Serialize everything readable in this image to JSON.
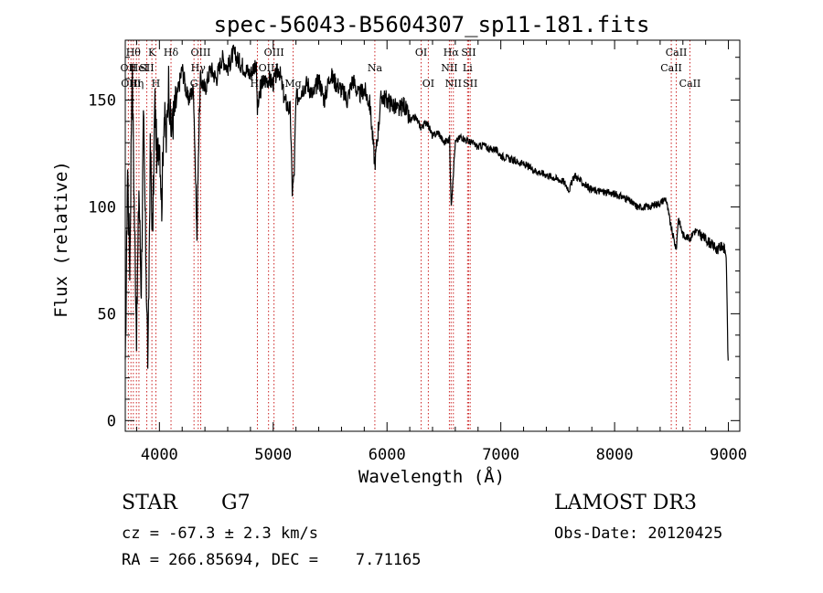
{
  "chart_data": {
    "type": "line",
    "title": "spec-56043-B5604307_sp11-181.fits",
    "xlabel": "Wavelength (Å)",
    "ylabel": "Flux (relative)",
    "xlim": [
      3700,
      9100
    ],
    "ylim": [
      -5,
      178
    ],
    "xticks": [
      4000,
      5000,
      6000,
      7000,
      8000,
      9000
    ],
    "xtick_labels": [
      "4000",
      "5000",
      "6000",
      "7000",
      "8000",
      "9000"
    ],
    "yticks": [
      0,
      50,
      100,
      150
    ],
    "ytick_labels": [
      "0",
      "50",
      "100",
      "150"
    ],
    "series": [
      {
        "name": "flux",
        "x": [
          3700,
          3720,
          3740,
          3760,
          3780,
          3800,
          3820,
          3840,
          3860,
          3880,
          3900,
          3920,
          3940,
          3960,
          3980,
          4000,
          4020,
          4040,
          4060,
          4080,
          4100,
          4150,
          4200,
          4250,
          4300,
          4330,
          4340,
          4360,
          4400,
          4450,
          4500,
          4550,
          4600,
          4650,
          4700,
          4750,
          4800,
          4850,
          4861,
          4900,
          4950,
          5000,
          5050,
          5100,
          5150,
          5167,
          5184,
          5200,
          5250,
          5300,
          5350,
          5400,
          5450,
          5500,
          5550,
          5600,
          5650,
          5700,
          5750,
          5800,
          5850,
          5893,
          5950,
          6000,
          6050,
          6100,
          6150,
          6200,
          6250,
          6300,
          6350,
          6400,
          6450,
          6500,
          6550,
          6563,
          6600,
          6650,
          6700,
          6750,
          6800,
          6850,
          6900,
          6950,
          7000,
          7100,
          7200,
          7300,
          7400,
          7500,
          7550,
          7600,
          7650,
          7700,
          7800,
          7900,
          8000,
          8100,
          8200,
          8300,
          8400,
          8450,
          8498,
          8542,
          8560,
          8600,
          8662,
          8700,
          8800,
          8900,
          8950,
          8980,
          9000
        ],
        "values": [
          20,
          120,
          70,
          170,
          95,
          40,
          110,
          60,
          140,
          80,
          25,
          130,
          85,
          150,
          120,
          135,
          100,
          145,
          130,
          160,
          135,
          150,
          165,
          150,
          155,
          85,
          120,
          160,
          155,
          165,
          160,
          170,
          165,
          172,
          168,
          165,
          162,
          168,
          145,
          158,
          160,
          158,
          165,
          150,
          145,
          108,
          115,
          150,
          155,
          158,
          152,
          160,
          150,
          162,
          158,
          155,
          150,
          160,
          152,
          155,
          148,
          120,
          152,
          150,
          148,
          145,
          148,
          140,
          142,
          137,
          140,
          133,
          135,
          130,
          132,
          100,
          130,
          133,
          131,
          130,
          128,
          129,
          127,
          127,
          124,
          122,
          120,
          117,
          115,
          113,
          112,
          108,
          115,
          112,
          108,
          107,
          106,
          104,
          100,
          100,
          102,
          104,
          90,
          80,
          95,
          87,
          85,
          89,
          85,
          80,
          82,
          78,
          20
        ]
      }
    ],
    "lines": [
      {
        "wave": 3727,
        "label": "OII",
        "row": 1
      },
      {
        "wave": 3750,
        "label": "OIII",
        "row": 2
      },
      {
        "wave": 3771,
        "label": "Hθ",
        "row": 0
      },
      {
        "wave": 3798,
        "label": "Hη",
        "row": 2
      },
      {
        "wave": 3820,
        "label": "HeI",
        "row": 1
      },
      {
        "wave": 3889,
        "label": "SII",
        "row": 1
      },
      {
        "wave": 3934,
        "label": "K",
        "row": 0
      },
      {
        "wave": 3969,
        "label": "H",
        "row": 2
      },
      {
        "wave": 4102,
        "label": "Hδ",
        "row": 0
      },
      {
        "wave": 4304,
        "label": "G",
        "row": 2
      },
      {
        "wave": 4341,
        "label": "Hγ",
        "row": 1
      },
      {
        "wave": 4363,
        "label": "OIII",
        "row": 0
      },
      {
        "wave": 4861,
        "label": "Hβ",
        "row": 2
      },
      {
        "wave": 4959,
        "label": "OIII",
        "row": 1
      },
      {
        "wave": 5007,
        "label": "OIII",
        "row": 0
      },
      {
        "wave": 5175,
        "label": "Mg",
        "row": 2
      },
      {
        "wave": 5893,
        "label": "Na",
        "row": 1
      },
      {
        "wave": 6300,
        "label": "OI",
        "row": 0
      },
      {
        "wave": 6363,
        "label": "OI",
        "row": 2
      },
      {
        "wave": 6548,
        "label": "NII",
        "row": 1
      },
      {
        "wave": 6563,
        "label": "Hα",
        "row": 0
      },
      {
        "wave": 6583,
        "label": "NII",
        "row": 2
      },
      {
        "wave": 6708,
        "label": "Li",
        "row": 1
      },
      {
        "wave": 6717,
        "label": "SII",
        "row": 0
      },
      {
        "wave": 6731,
        "label": "SII",
        "row": 2
      },
      {
        "wave": 8498,
        "label": "CaII",
        "row": 1
      },
      {
        "wave": 8542,
        "label": "CaII",
        "row": 0
      },
      {
        "wave": 8662,
        "label": "CaII",
        "row": 2
      }
    ]
  },
  "info": {
    "class": "STAR",
    "subclass": "G7",
    "survey": "LAMOST DR3",
    "cz": "cz = -67.3 ± 2.3 km/s",
    "obs_date": "Obs-Date: 20120425",
    "coords": "RA = 266.85694, DEC =    7.71165"
  }
}
